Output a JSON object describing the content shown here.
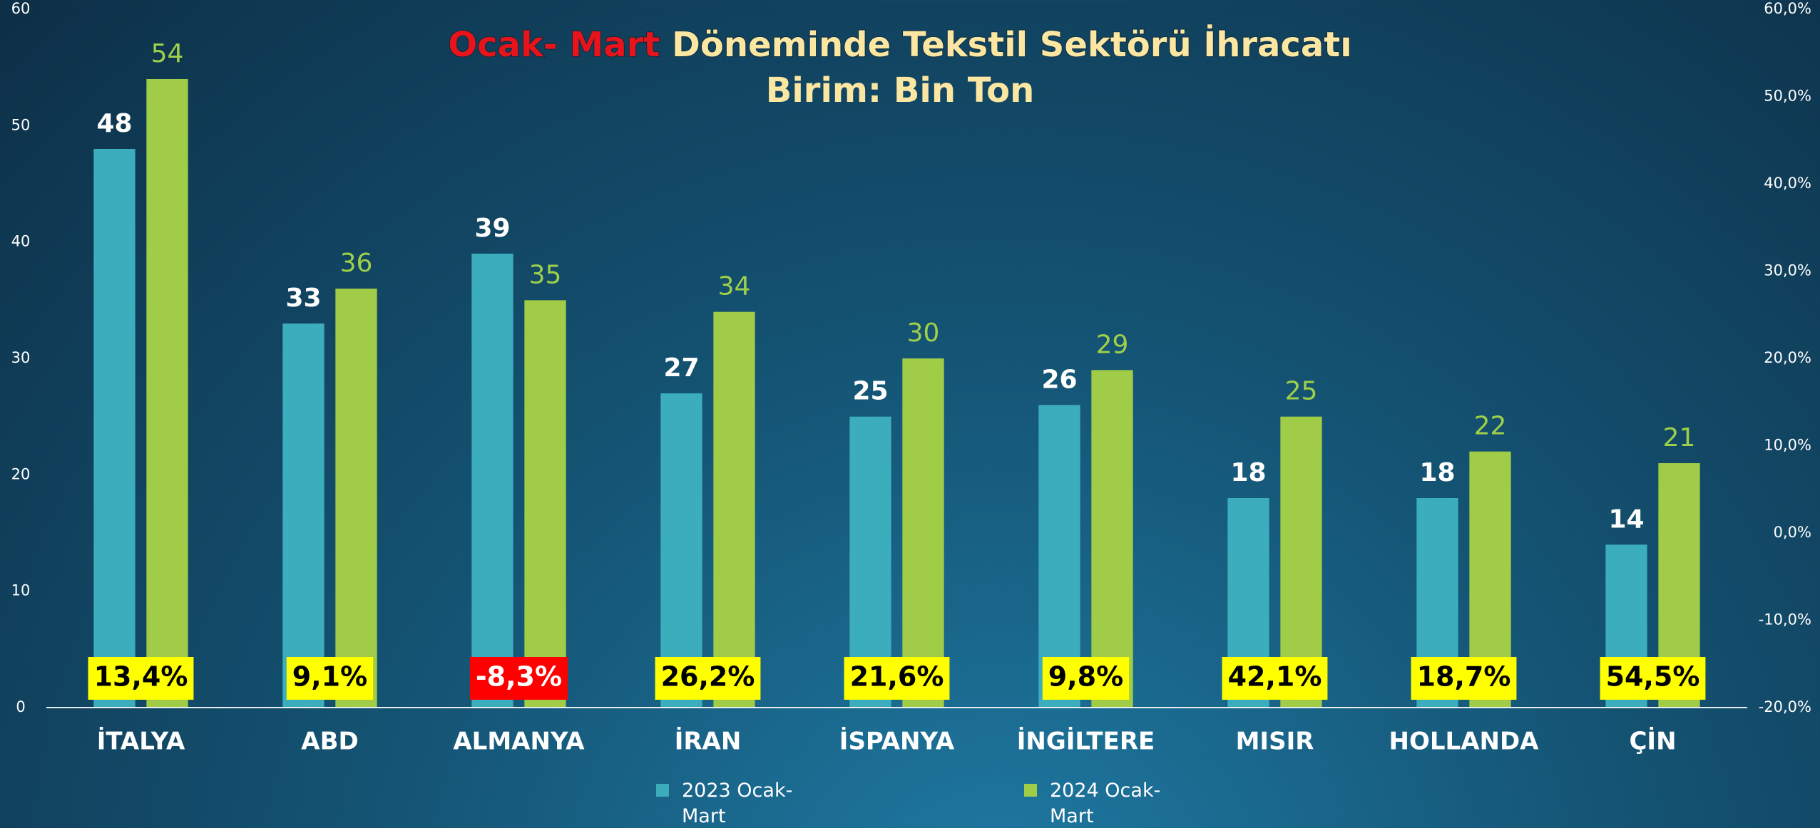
{
  "chart_data": {
    "type": "bar",
    "title": {
      "highlight": "Ocak- Mart",
      "rest": "Döneminde Tekstil Sektörü İhracatı"
    },
    "subtitle": "Birim: Bin Ton",
    "categories": [
      "İTALYA",
      "ABD",
      "ALMANYA",
      "İRAN",
      "İSPANYA",
      "İNGİLTERE",
      "MISIR",
      "HOLLANDA",
      "ÇİN"
    ],
    "series": [
      {
        "name": "2023 Ocak-Mart",
        "color": "#3badbd",
        "values": [
          48,
          33,
          39,
          27,
          25,
          26,
          18,
          18,
          14
        ]
      },
      {
        "name": "2024 Ocak-Mart",
        "color": "#a0cc47",
        "values": [
          54,
          36,
          35,
          34,
          30,
          29,
          25,
          22,
          21
        ]
      }
    ],
    "change": {
      "axis": "y2",
      "values": [
        13.4,
        9.1,
        -8.3,
        26.2,
        21.6,
        9.8,
        42.1,
        18.7,
        54.5
      ],
      "value_labels": [
        "13,4%",
        "9,1%",
        "-8,3%",
        "26,2%",
        "21,6%",
        "9,8%",
        "42,1%",
        "18,7%",
        "54,5%"
      ]
    },
    "ylim": [
      0,
      60
    ],
    "yticks": [
      0,
      10,
      20,
      30,
      40,
      50,
      60
    ],
    "y2lim": [
      -20,
      60
    ],
    "y2ticks": [
      {
        "value": -20,
        "label": "-20,0%"
      },
      {
        "value": -10,
        "label": "-10,0%"
      },
      {
        "value": 0,
        "label": "0,0%"
      },
      {
        "value": 10,
        "label": "10,0%"
      },
      {
        "value": 20,
        "label": "20,0%"
      },
      {
        "value": 30,
        "label": "30,0%"
      },
      {
        "value": 40,
        "label": "40,0%"
      },
      {
        "value": 50,
        "label": "50,0%"
      },
      {
        "value": 60,
        "label": "60,0%"
      }
    ],
    "grid": false,
    "legend": "bottom"
  }
}
